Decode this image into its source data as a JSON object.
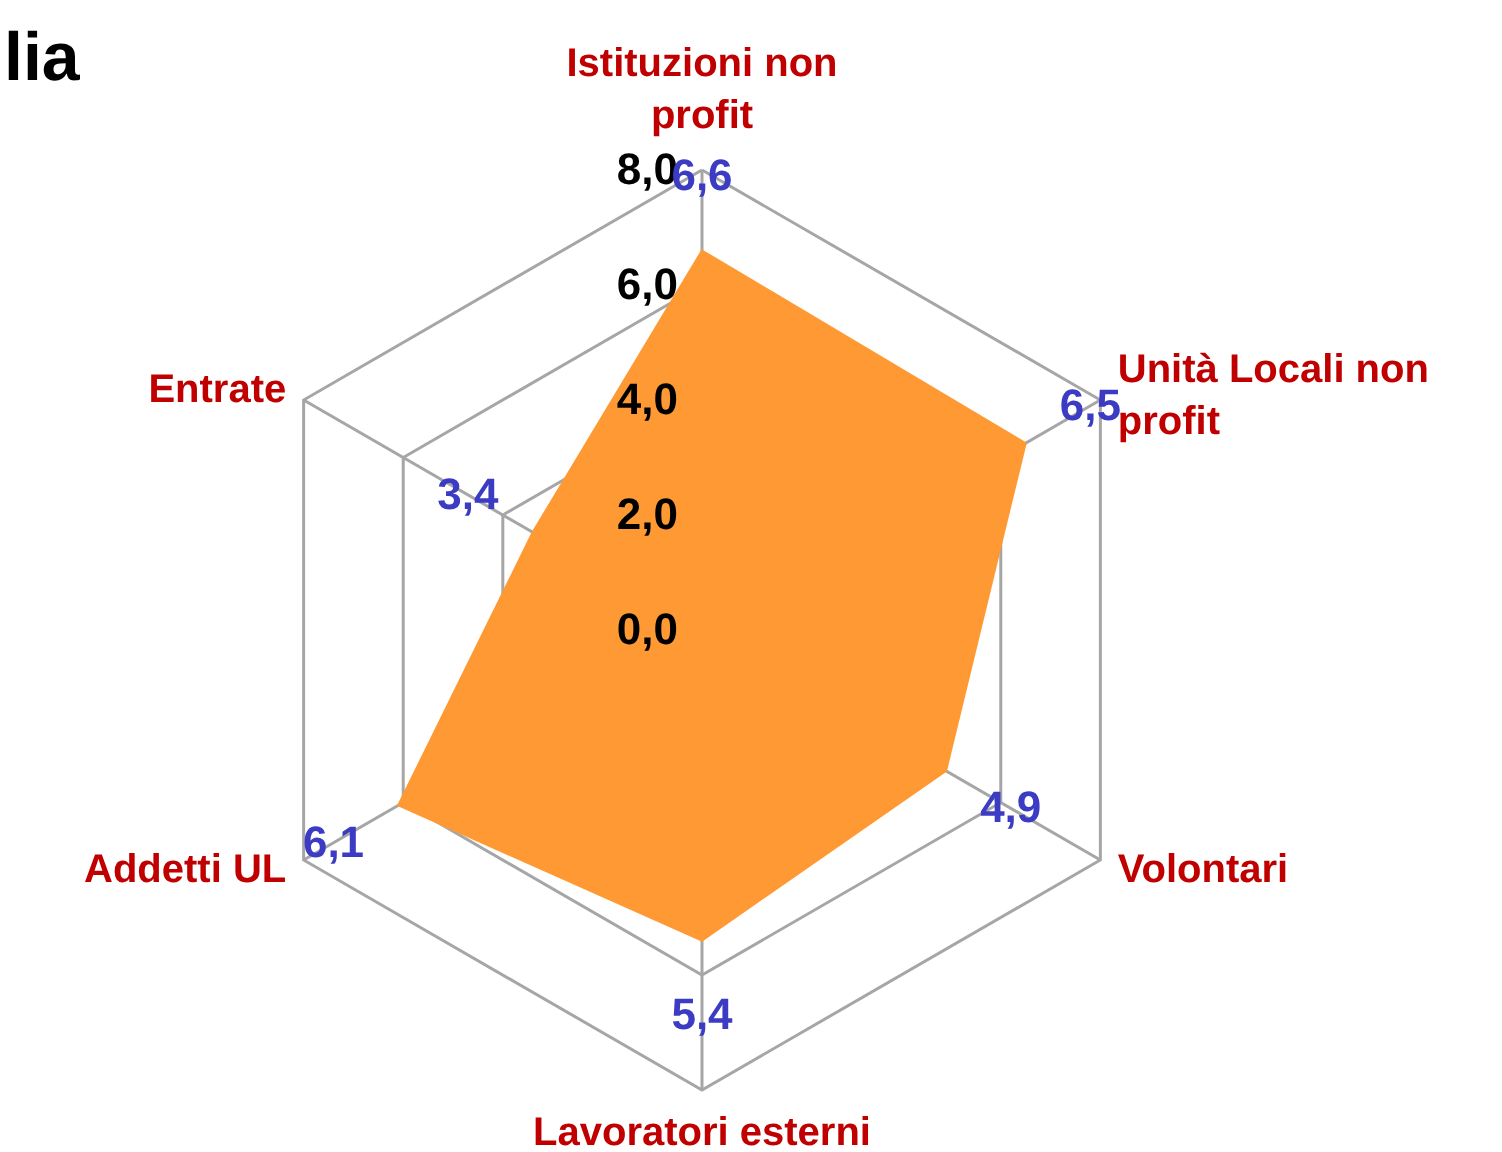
{
  "chart_data": {
    "type": "radar",
    "title": "lia",
    "categories": [
      "Istituzioni non profit",
      "Unità Locali non profit",
      "Volontari",
      "Lavoratori esterni",
      "Addetti UL",
      "Entrate"
    ],
    "series": [
      {
        "color": "#ff9933",
        "values": [
          6.6,
          6.5,
          4.9,
          5.4,
          6.1,
          3.4
        ],
        "value_labels": [
          "6,6",
          "6,5",
          "4,9",
          "5,4",
          "6,1",
          "3,4"
        ]
      }
    ],
    "ylim": [
      0,
      8
    ],
    "yticks": [
      {
        "value": 0,
        "label": "0,0"
      },
      {
        "value": 2,
        "label": "2,0"
      },
      {
        "value": 4,
        "label": "4,0"
      },
      {
        "value": 6,
        "label": "6,0"
      },
      {
        "value": 8,
        "label": "8,0"
      }
    ],
    "grid": true
  }
}
